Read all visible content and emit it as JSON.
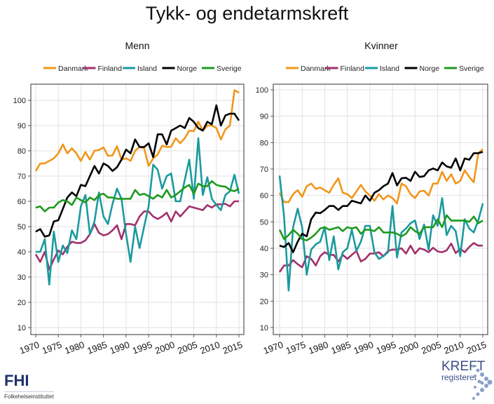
{
  "title": "Tykk- og endetarmskreft",
  "logos": {
    "fhi": "FHI",
    "fhi_sub": "Folkehelseinstituttet",
    "kreft_a": "KREFT",
    "kreft_b": "registeret"
  },
  "colors": {
    "Danmark": "#F0961A",
    "Finland": "#A3306C",
    "Island": "#1A9A9E",
    "Norge": "#000000",
    "Sverige": "#1E9A1E"
  },
  "chart_data": [
    {
      "type": "line",
      "title": "Menn",
      "xlabel": "",
      "ylabel": "",
      "x_start": 1970,
      "x_end": 2015,
      "xticks": [
        1970,
        1975,
        1980,
        1985,
        1990,
        1995,
        2000,
        2005,
        2010,
        2015
      ],
      "yticks": [
        10,
        20,
        30,
        40,
        50,
        60,
        70,
        80,
        90,
        100
      ],
      "ylim": [
        10,
        100
      ],
      "grid": true,
      "legend": "top",
      "series": [
        {
          "name": "Danmark",
          "values": [
            72,
            75,
            75,
            76,
            77,
            79,
            82.5,
            79,
            81,
            79,
            76,
            79.5,
            76.5,
            80,
            80.3,
            81.3,
            78,
            78.2,
            81.8,
            76.5,
            77,
            76,
            80,
            81.5,
            81,
            74,
            77,
            78.5,
            82,
            81.5,
            81.6,
            85,
            83,
            85,
            88,
            87.8,
            91.5,
            88,
            90,
            90,
            89,
            84.5,
            88.5,
            90,
            104,
            103
          ]
        },
        {
          "name": "Finland",
          "values": [
            39,
            36,
            40,
            33,
            37,
            40.5,
            39,
            42,
            44,
            43.5,
            43.5,
            44.5,
            47,
            51,
            47.5,
            46.5,
            47,
            48.5,
            50.5,
            45,
            51,
            51,
            50.5,
            54,
            56,
            56,
            54,
            53,
            54,
            55.5,
            52,
            56,
            54,
            56,
            58,
            57.5,
            57,
            56.5,
            58.5,
            57.5,
            58.8,
            58.8,
            59,
            58,
            60,
            60
          ]
        },
        {
          "name": "Island",
          "values": [
            40,
            40,
            45,
            27,
            48,
            36,
            42.5,
            39.5,
            48.5,
            45,
            58,
            62.5,
            47,
            52,
            63.5,
            54,
            51,
            59,
            65,
            61,
            47,
            36,
            50,
            41.5,
            50,
            58,
            74.5,
            72.5,
            65,
            70,
            71,
            60,
            60,
            68.5,
            76.5,
            61,
            85,
            62.5,
            69.5,
            61,
            58.5,
            56.5,
            62.5,
            64,
            70.5,
            63
          ]
        },
        {
          "name": "Norge",
          "values": [
            48,
            49,
            46,
            46.5,
            52,
            52.5,
            57,
            61.5,
            63.5,
            62,
            66.5,
            66,
            70,
            74,
            71,
            75,
            74,
            72,
            73.5,
            76.5,
            80.5,
            79,
            84.5,
            81.5,
            81.5,
            83,
            77.5,
            86.5,
            86.5,
            82.5,
            88,
            89,
            90,
            89,
            93,
            91.5,
            89,
            88,
            91.5,
            90.5,
            98,
            90,
            94,
            94.7,
            94.7,
            92
          ]
        },
        {
          "name": "Sverige",
          "values": [
            57.5,
            58,
            56,
            57.5,
            57.5,
            59.5,
            60.5,
            60,
            58.5,
            61.5,
            60.5,
            59.5,
            61.5,
            60.5,
            62.5,
            63,
            61.5,
            61.5,
            61,
            61,
            61,
            61,
            64.5,
            62.5,
            63,
            62,
            61,
            62.5,
            61.5,
            64.5,
            61.5,
            62.5,
            64,
            65.5,
            66.5,
            63,
            67,
            66,
            66,
            68,
            66.5,
            66,
            65.8,
            64.5,
            64,
            65
          ]
        }
      ]
    },
    {
      "type": "line",
      "title": "Kvinner",
      "xlabel": "",
      "ylabel": "",
      "x_start": 1970,
      "x_end": 2015,
      "xticks": [
        1970,
        1975,
        1980,
        1985,
        1990,
        1995,
        2000,
        2005,
        2010,
        2015
      ],
      "yticks": [
        10,
        20,
        30,
        40,
        50,
        60,
        70,
        80,
        90,
        100
      ],
      "ylim": [
        10,
        100
      ],
      "grid": true,
      "legend": "top",
      "series": [
        {
          "name": "Danmark",
          "values": [
            61,
            57.5,
            57.5,
            60.5,
            62,
            59.5,
            63.5,
            64.5,
            62.5,
            63,
            62,
            61,
            64,
            66.5,
            61,
            60.5,
            59,
            61.5,
            64,
            61.5,
            60,
            58,
            60.5,
            58.5,
            60,
            59,
            57,
            64.5,
            63.5,
            60.5,
            59,
            61.5,
            61.8,
            60,
            64.5,
            64.5,
            69,
            65.5,
            68,
            64.5,
            65.5,
            69.5,
            67,
            65,
            76,
            77.5
          ]
        },
        {
          "name": "Finland",
          "values": [
            31,
            33.5,
            33.5,
            35.5,
            34,
            32.8,
            37,
            36,
            33.5,
            37,
            38.5,
            37.5,
            37.5,
            35,
            37.5,
            36,
            37.5,
            39,
            35,
            36,
            38,
            38,
            38.5,
            37,
            39,
            39.5,
            39.5,
            40,
            38,
            41,
            38,
            40,
            39.5,
            38.5,
            40.2,
            38.8,
            38.5,
            39.2,
            41.8,
            38.2,
            39.8,
            38.5,
            40.5,
            42,
            41,
            41
          ]
        },
        {
          "name": "Island",
          "values": [
            67.5,
            52,
            24,
            48,
            55,
            48,
            30,
            39.5,
            41.5,
            42.5,
            48,
            35.5,
            44.5,
            32,
            38.5,
            40,
            47,
            39,
            42.5,
            48.5,
            48.5,
            38.5,
            36,
            37,
            38.5,
            56,
            36.5,
            46,
            47.5,
            49.5,
            50.5,
            43.5,
            49,
            39.5,
            52.5,
            48.5,
            59,
            45,
            48.5,
            46.5,
            37,
            51,
            47.5,
            46,
            50.5,
            57
          ]
        },
        {
          "name": "Norge",
          "values": [
            41,
            40.5,
            42,
            38.5,
            42.5,
            45.5,
            44.5,
            51,
            53.5,
            53.3,
            54.5,
            56,
            56,
            54.5,
            56,
            56,
            58,
            57.5,
            57,
            60,
            58,
            61,
            62,
            63.5,
            64.5,
            68.5,
            63.8,
            66.5,
            66.7,
            65.5,
            69,
            67,
            67.3,
            69.5,
            70.2,
            69.5,
            72.5,
            71,
            70.5,
            74,
            69.5,
            74,
            73.5,
            76,
            76,
            76.5
          ]
        },
        {
          "name": "Sverige",
          "values": [
            47,
            43.5,
            45,
            47,
            45.5,
            43.5,
            43,
            44,
            45.5,
            47.5,
            48,
            47,
            47.5,
            48,
            46.5,
            48,
            47.5,
            48,
            45.5,
            47,
            47,
            46.5,
            48,
            46,
            46,
            46,
            45.5,
            44.5,
            45.5,
            48,
            46.5,
            45.5,
            48,
            48,
            48,
            51,
            48,
            52.5,
            50.5,
            50.5,
            50.5,
            50.5,
            50,
            52,
            49.5,
            50.5
          ]
        }
      ]
    }
  ]
}
